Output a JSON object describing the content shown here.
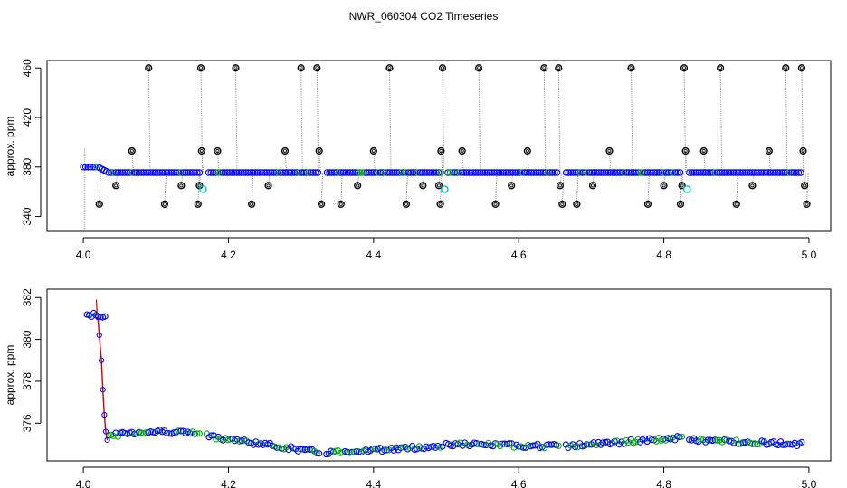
{
  "figure": {
    "title": "NWR_060304  CO2 Timeseries"
  },
  "chart_data": [
    {
      "type": "scatter",
      "title": "NWR_060304  CO2 Timeseries",
      "xlabel": "",
      "ylabel": "approx. ppm",
      "xlim": [
        3.95,
        5.03
      ],
      "ylim": [
        328,
        466
      ],
      "xticks": [
        "4.0",
        "4.2",
        "4.4",
        "4.6",
        "4.8",
        "5.0"
      ],
      "yticks": [
        "340",
        "380",
        "420",
        "460"
      ],
      "baseline": {
        "start_value": 380,
        "level_value": 375.5,
        "step_x": 4.035
      },
      "gaps": [
        [
          4.16,
          4.17
        ],
        [
          4.325,
          4.335
        ],
        [
          4.495,
          4.5
        ],
        [
          4.655,
          4.665
        ],
        [
          4.825,
          4.835
        ]
      ],
      "outliers": [
        {
          "x": 4.022,
          "y": 350
        },
        {
          "x": 4.045,
          "y": 365
        },
        {
          "x": 4.067,
          "y": 393
        },
        {
          "x": 4.09,
          "y": 460
        },
        {
          "x": 4.112,
          "y": 350
        },
        {
          "x": 4.135,
          "y": 365
        },
        {
          "x": 4.158,
          "y": 350
        },
        {
          "x": 4.16,
          "y": 365
        },
        {
          "x": 4.162,
          "y": 460
        },
        {
          "x": 4.163,
          "y": 393
        },
        {
          "x": 4.185,
          "y": 393
        },
        {
          "x": 4.21,
          "y": 460
        },
        {
          "x": 4.232,
          "y": 350
        },
        {
          "x": 4.255,
          "y": 365
        },
        {
          "x": 4.278,
          "y": 393
        },
        {
          "x": 4.3,
          "y": 460
        },
        {
          "x": 4.322,
          "y": 460
        },
        {
          "x": 4.325,
          "y": 393
        },
        {
          "x": 4.328,
          "y": 350
        },
        {
          "x": 4.355,
          "y": 350
        },
        {
          "x": 4.378,
          "y": 365
        },
        {
          "x": 4.4,
          "y": 393
        },
        {
          "x": 4.422,
          "y": 460
        },
        {
          "x": 4.445,
          "y": 350
        },
        {
          "x": 4.468,
          "y": 365
        },
        {
          "x": 4.492,
          "y": 350
        },
        {
          "x": 4.493,
          "y": 393
        },
        {
          "x": 4.495,
          "y": 460
        },
        {
          "x": 4.49,
          "y": 365
        },
        {
          "x": 4.522,
          "y": 393
        },
        {
          "x": 4.545,
          "y": 460
        },
        {
          "x": 4.568,
          "y": 350
        },
        {
          "x": 4.59,
          "y": 365
        },
        {
          "x": 4.612,
          "y": 393
        },
        {
          "x": 4.635,
          "y": 460
        },
        {
          "x": 4.655,
          "y": 460
        },
        {
          "x": 4.657,
          "y": 365
        },
        {
          "x": 4.66,
          "y": 350
        },
        {
          "x": 4.68,
          "y": 350
        },
        {
          "x": 4.702,
          "y": 365
        },
        {
          "x": 4.725,
          "y": 393
        },
        {
          "x": 4.755,
          "y": 460
        },
        {
          "x": 4.778,
          "y": 350
        },
        {
          "x": 4.8,
          "y": 365
        },
        {
          "x": 4.823,
          "y": 350
        },
        {
          "x": 4.825,
          "y": 365
        },
        {
          "x": 4.828,
          "y": 460
        },
        {
          "x": 4.83,
          "y": 393
        },
        {
          "x": 4.855,
          "y": 393
        },
        {
          "x": 4.878,
          "y": 460
        },
        {
          "x": 4.9,
          "y": 350
        },
        {
          "x": 4.922,
          "y": 365
        },
        {
          "x": 4.945,
          "y": 393
        },
        {
          "x": 4.968,
          "y": 460
        },
        {
          "x": 4.99,
          "y": 460
        },
        {
          "x": 4.992,
          "y": 393
        },
        {
          "x": 4.994,
          "y": 365
        },
        {
          "x": 4.997,
          "y": 350
        }
      ],
      "highlighted": [
        {
          "x": 4.165,
          "y": 362
        },
        {
          "x": 4.498,
          "y": 362
        },
        {
          "x": 4.832,
          "y": 362
        }
      ],
      "colors": {
        "main": "#0000ff",
        "alt": "#00b000",
        "outlier": "#000000",
        "highlight": "#00cccc",
        "drop": "#888888"
      }
    },
    {
      "type": "scatter",
      "title": "",
      "xlabel": "",
      "ylabel": "approx. ppm",
      "xlim": [
        3.95,
        5.03
      ],
      "ylim": [
        374.2,
        382.4
      ],
      "xticks": [
        "4.0",
        "4.2",
        "4.4",
        "4.6",
        "4.8",
        "5.0"
      ],
      "yticks": [
        "376",
        "378",
        "380",
        "382"
      ],
      "segments": [
        {
          "x0": 4.005,
          "x1": 4.03,
          "y0": 381.2,
          "y1": 381.1
        },
        {
          "x0": 4.035,
          "x1": 4.16,
          "y0": 375.4,
          "y1": 375.5,
          "peak": 375.6
        },
        {
          "x0": 4.17,
          "x1": 4.325,
          "y0": 375.4,
          "y1": 374.6
        },
        {
          "x0": 4.335,
          "x1": 4.495,
          "y0": 374.6,
          "y1": 374.9
        },
        {
          "x0": 4.5,
          "x1": 4.655,
          "y0": 375.0,
          "y1": 374.9
        },
        {
          "x0": 4.665,
          "x1": 4.825,
          "y0": 374.9,
          "y1": 375.3
        },
        {
          "x0": 4.835,
          "x1": 4.99,
          "y0": 375.2,
          "y1": 375.0
        }
      ],
      "transition": [
        {
          "x": 4.02,
          "y": 381.1
        },
        {
          "x": 4.022,
          "y": 380.2
        },
        {
          "x": 4.025,
          "y": 379.0
        },
        {
          "x": 4.027,
          "y": 377.6
        },
        {
          "x": 4.029,
          "y": 376.4
        },
        {
          "x": 4.031,
          "y": 375.6
        },
        {
          "x": 4.033,
          "y": 375.2
        }
      ],
      "colors": {
        "main": "#0000ff",
        "alt": "#00b000",
        "trace": "#cc0000",
        "glyph": "#00008b"
      }
    }
  ]
}
